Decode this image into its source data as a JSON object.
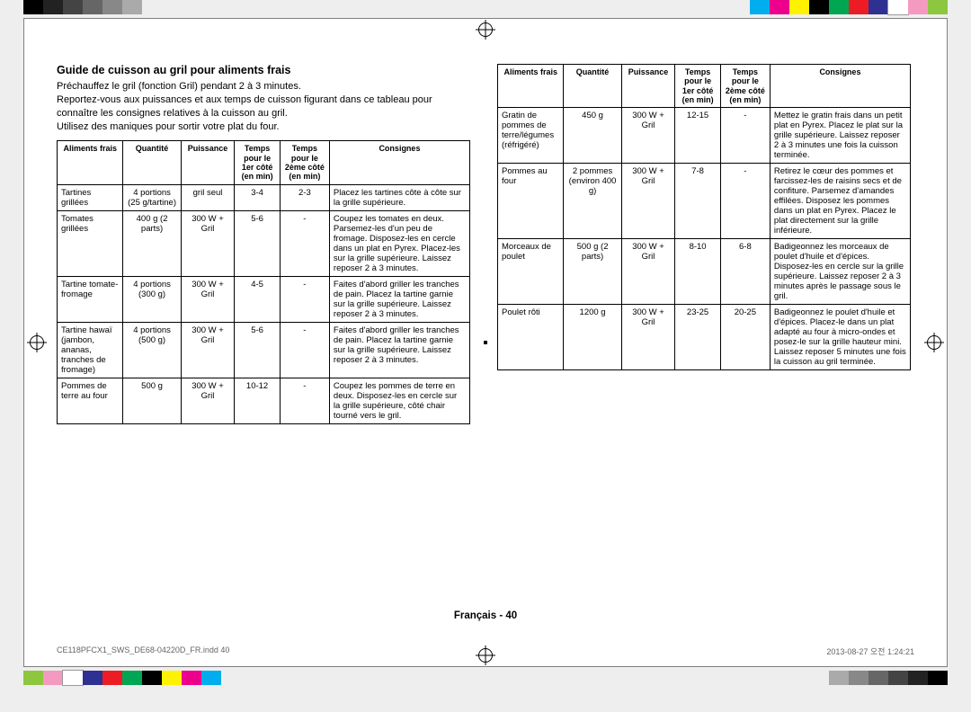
{
  "print_marks": {
    "top_left_swatches": [
      "#000000",
      "#222222",
      "#444444",
      "#666666",
      "#888888",
      "#aaaaaa"
    ],
    "top_right_swatches": [
      "#00aeef",
      "#ec008c",
      "#fff200",
      "#000000",
      "#00a651",
      "#ed1c24",
      "#2e3192",
      "#ffffff",
      "#f49ac1",
      "#8dc63f"
    ],
    "bottom_left_swatches": [
      "#8dc63f",
      "#f49ac1",
      "#ffffff",
      "#2e3192",
      "#ed1c24",
      "#00a651",
      "#000000",
      "#fff200",
      "#ec008c",
      "#00aeef"
    ],
    "bottom_right_swatches": [
      "#aaaaaa",
      "#888888",
      "#666666",
      "#444444",
      "#222222",
      "#000000"
    ]
  },
  "title": "Guide de cuisson au gril pour aliments frais",
  "intro_lines": [
    "Préchauffez le gril (fonction Gril) pendant 2 à 3 minutes.",
    "Reportez-vous aux puissances et aux temps de cuisson figurant dans ce tableau pour connaître les consignes relatives à la cuisson au gril.",
    "Utilisez des maniques pour sortir votre plat du four."
  ],
  "headers": {
    "food": "Aliments frais",
    "qty": "Quantité",
    "power": "Puissance",
    "t1": "Temps pour le 1er côté (en min)",
    "t2": "Temps pour le 2ème côté (en min)",
    "instr": "Consignes"
  },
  "col_widths": {
    "food": "16%",
    "qty": "14%",
    "power": "13%",
    "t1": "11%",
    "t2": "12%",
    "instr": "34%"
  },
  "table_left": [
    {
      "food": "Tartines grillées",
      "qty": "4 portions (25 g/tartine)",
      "power": "gril seul",
      "t1": "3-4",
      "t2": "2-3",
      "instr": "Placez les tartines côte à côte sur la grille supérieure."
    },
    {
      "food": "Tomates grillées",
      "qty": "400 g (2 parts)",
      "power": "300 W + Gril",
      "t1": "5-6",
      "t2": "-",
      "instr": "Coupez les tomates en deux. Parsemez-les d'un peu de fromage. Disposez-les en cercle dans un plat en Pyrex. Placez-les sur la grille supérieure. Laissez reposer 2 à 3 minutes."
    },
    {
      "food": "Tartine tomate-fromage",
      "qty": "4 portions (300 g)",
      "power": "300 W + Gril",
      "t1": "4-5",
      "t2": "-",
      "instr": "Faites d'abord griller les tranches de pain. Placez la tartine garnie sur la grille supérieure. Laissez reposer 2 à 3 minutes."
    },
    {
      "food": "Tartine hawaï (jambon, ananas, tranches de fromage)",
      "qty": "4 portions (500 g)",
      "power": "300 W + Gril",
      "t1": "5-6",
      "t2": "-",
      "instr": "Faites d'abord griller les tranches de pain. Placez la tartine garnie sur la grille supérieure. Laissez reposer 2 à 3 minutes."
    },
    {
      "food": "Pommes de terre au four",
      "qty": "500 g",
      "power": "300 W + Gril",
      "t1": "10-12",
      "t2": "-",
      "instr": "Coupez les pommes de terre en deux. Disposez-les en cercle sur la grille supérieure, côté chair tourné vers le gril."
    }
  ],
  "table_right": [
    {
      "food": "Gratin de pommes de terre/légumes (réfrigéré)",
      "qty": "450 g",
      "power": "300 W + Gril",
      "t1": "12-15",
      "t2": "-",
      "instr": "Mettez le gratin frais dans un petit plat en Pyrex. Placez le plat sur la grille supérieure. Laissez reposer 2 à 3 minutes une fois la cuisson terminée."
    },
    {
      "food": "Pommes au four",
      "qty": "2 pommes (environ 400 g)",
      "power": "300 W + Gril",
      "t1": "7-8",
      "t2": "-",
      "instr": "Retirez le cœur des pommes et farcissez-les de raisins secs et de confiture. Parsemez d'amandes effilées. Disposez les pommes dans un plat en Pyrex. Placez le plat directement sur la grille inférieure."
    },
    {
      "food": "Morceaux de poulet",
      "qty": "500 g (2 parts)",
      "power": "300 W + Gril",
      "t1": "8-10",
      "t2": "6-8",
      "instr": "Badigeonnez les morceaux de poulet d'huile et d'épices. Disposez-les en cercle sur la grille supérieure. Laissez reposer 2 à 3 minutes après le passage sous le gril."
    },
    {
      "food": "Poulet rôti",
      "qty": "1200 g",
      "power": "300 W + Gril",
      "t1": "23-25",
      "t2": "20-25",
      "instr": "Badigeonnez le poulet d'huile et d'épices. Placez-le dans un plat adapté au four à micro-ondes et posez-le sur la grille hauteur mini. Laissez reposer 5 minutes une fois la cuisson au gril terminée."
    }
  ],
  "page_label": "Français - 40",
  "footer_left": "CE118PFCX1_SWS_DE68-04220D_FR.indd   40",
  "footer_right": "2013-08-27   오전 1:24:21"
}
